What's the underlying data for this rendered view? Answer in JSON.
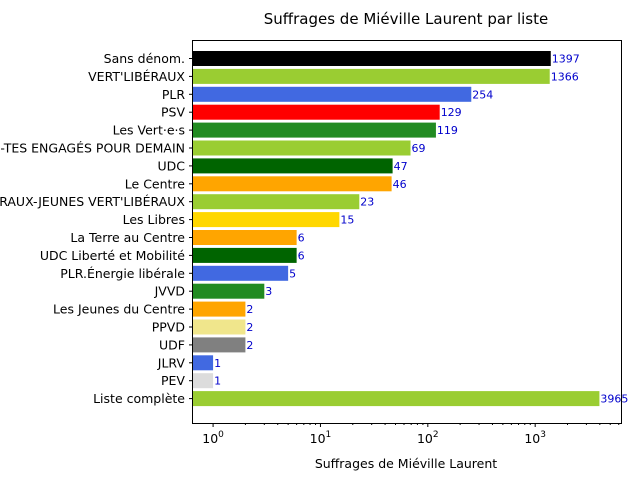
{
  "chart_data": {
    "type": "bar",
    "orientation": "horizontal",
    "title": "Suffrages de Miéville Laurent par liste",
    "xlabel": "Suffrages de Miéville Laurent",
    "ylabel": "",
    "xscale": "log",
    "xlim": [
      0.65,
      6300
    ],
    "x_ticks": [
      {
        "value": 1,
        "base": "10",
        "exp": "0"
      },
      {
        "value": 10,
        "base": "10",
        "exp": "1"
      },
      {
        "value": 100,
        "base": "10",
        "exp": "2"
      },
      {
        "value": 1000,
        "base": "10",
        "exp": "3"
      }
    ],
    "grid": false,
    "legend": "none",
    "categories": [
      "Sans dénom.",
      "VERT'LIBÉRAUX",
      "PLR",
      "PSV",
      "Les Vert·e·s",
      "LES JEUNES ET LES AÎNÉS-ES, TOUS-TES ENGAGÉS POUR DEMAIN",
      "UDC",
      "Le Centre",
      "LES VERT'LIBÉRAUX-JEUNES VERT'LIBÉRAUX",
      "Les Libres",
      "La Terre au Centre",
      "UDC Liberté et Mobilité",
      "PLR.Énergie libérale",
      "JVVD",
      "Les Jeunes du Centre",
      "PPVD",
      "UDF",
      "JLRV",
      "PEV",
      "Liste complète"
    ],
    "values": [
      1397,
      1366,
      254,
      129,
      119,
      69,
      47,
      46,
      23,
      15,
      6,
      6,
      5,
      3,
      2,
      2,
      2,
      1,
      1,
      3965
    ],
    "value_labels": [
      "1397",
      "1366",
      "254",
      "129",
      "119",
      "69",
      "47",
      "46",
      "23",
      "15",
      "6",
      "6",
      "5",
      "3",
      "2",
      "2",
      "2",
      "1",
      "1",
      "3965"
    ],
    "colors": [
      "#000000",
      "#9acd32",
      "#4169e1",
      "#ff0000",
      "#228b22",
      "#9acd32",
      "#006400",
      "#ffa500",
      "#9acd32",
      "#ffd700",
      "#ffa500",
      "#006400",
      "#4169e1",
      "#228b22",
      "#ffa500",
      "#f0e68c",
      "#808080",
      "#4169e1",
      "#dcdcdc",
      "#9acd32"
    ]
  }
}
